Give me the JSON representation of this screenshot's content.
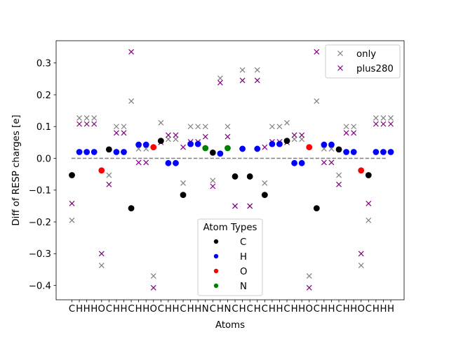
{
  "chart_data": {
    "type": "scatter",
    "xlabel": "Atoms",
    "ylabel": "Diff of RESP charges [e]",
    "ylim": [
      -0.445,
      0.37
    ],
    "yticks": [
      -0.4,
      -0.3,
      -0.2,
      -0.1,
      0.0,
      0.1,
      0.2,
      0.3
    ],
    "ytick_labels": [
      "−0.4",
      "−0.3",
      "−0.2",
      "−0.1",
      "0.0",
      "0.1",
      "0.2",
      "0.3"
    ],
    "categories": [
      "C",
      "H",
      "H",
      "H",
      "O",
      "C",
      "H",
      "H",
      "C",
      "H",
      "H",
      "O",
      "C",
      "H",
      "H",
      "C",
      "H",
      "H",
      "N",
      "C",
      "H",
      "N",
      "C",
      "H",
      "C",
      "H",
      "C",
      "H",
      "H",
      "C",
      "H",
      "H",
      "O",
      "C",
      "H",
      "H",
      "C",
      "H",
      "H",
      "O",
      "C",
      "H",
      "H",
      "H"
    ],
    "reference_line": 0.0,
    "series": [
      {
        "name": "only",
        "marker": "x",
        "color": "#808080",
        "values": [
          -0.195,
          0.127,
          0.127,
          0.127,
          -0.337,
          -0.053,
          0.1,
          0.1,
          0.18,
          0.03,
          0.03,
          -0.37,
          0.112,
          0.06,
          0.06,
          -0.078,
          0.1,
          0.1,
          0.1,
          -0.07,
          0.252,
          0.1,
          -0.15,
          0.278,
          -0.15,
          0.278,
          -0.078,
          0.1,
          0.1,
          0.112,
          0.06,
          0.06,
          -0.37,
          0.18,
          0.03,
          0.03,
          -0.053,
          0.1,
          0.1,
          -0.337,
          -0.195,
          0.127,
          0.127,
          0.127
        ]
      },
      {
        "name": "plus280",
        "marker": "x",
        "color": "#800080",
        "values": [
          -0.142,
          0.108,
          0.108,
          0.108,
          -0.3,
          -0.082,
          0.08,
          0.08,
          0.335,
          -0.013,
          -0.013,
          -0.407,
          0.05,
          0.073,
          0.073,
          0.035,
          0.052,
          0.052,
          0.068,
          -0.088,
          0.238,
          0.068,
          -0.15,
          0.245,
          -0.15,
          0.245,
          0.035,
          0.052,
          0.052,
          0.05,
          0.073,
          0.073,
          -0.407,
          0.335,
          -0.013,
          -0.013,
          -0.082,
          0.08,
          0.08,
          -0.3,
          -0.142,
          0.108,
          0.108,
          0.108
        ]
      },
      {
        "name": "Atom Types",
        "marker": "o",
        "values": [
          -0.053,
          0.02,
          0.02,
          0.02,
          -0.038,
          0.028,
          0.02,
          0.02,
          -0.157,
          0.043,
          0.043,
          0.035,
          0.055,
          -0.015,
          -0.015,
          -0.115,
          0.045,
          0.045,
          0.032,
          0.018,
          0.015,
          0.032,
          -0.057,
          0.03,
          -0.057,
          0.03,
          -0.115,
          0.045,
          0.045,
          0.055,
          -0.015,
          -0.015,
          0.035,
          -0.157,
          0.043,
          0.043,
          0.028,
          0.02,
          0.02,
          -0.038,
          -0.053,
          0.02,
          0.02,
          0.02
        ]
      }
    ],
    "legends": [
      {
        "location": "upper right",
        "entries": [
          {
            "label": "only",
            "marker": "x",
            "color": "#808080"
          },
          {
            "label": "plus280",
            "marker": "x",
            "color": "#800080"
          }
        ]
      },
      {
        "location": "lower center",
        "title": "Atom Types",
        "entries": [
          {
            "label": "C",
            "marker": "o",
            "color": "#000000"
          },
          {
            "label": "H",
            "marker": "o",
            "color": "#0000ff"
          },
          {
            "label": "O",
            "marker": "o",
            "color": "#ff0000"
          },
          {
            "label": "N",
            "marker": "o",
            "color": "#008000"
          }
        ]
      }
    ],
    "element_colors": {
      "C": "#000000",
      "H": "#0000ff",
      "O": "#ff0000",
      "N": "#008000"
    }
  }
}
